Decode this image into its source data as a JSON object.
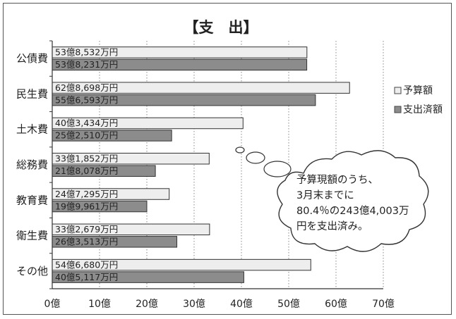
{
  "chart_data": {
    "type": "bar",
    "orientation": "horizontal",
    "title": "【支　出】",
    "categories": [
      "公債費",
      "民生費",
      "土木費",
      "総務費",
      "教育費",
      "衛生費",
      "その他"
    ],
    "series": [
      {
        "name": "予算額",
        "color": "#eeeeee",
        "values": [
          53.8532,
          62.8698,
          40.3434,
          33.1852,
          24.7295,
          33.2679,
          54.668
        ],
        "labels": [
          "53億8,532万円",
          "62億8,698万円",
          "40億3,434万円",
          "33億1,852万円",
          "24億7,295万円",
          "33億2,679万円",
          "54億6,680万円"
        ]
      },
      {
        "name": "支出済額",
        "color": "#8c8c8c",
        "values": [
          53.8231,
          55.6593,
          25.251,
          21.8078,
          19.9961,
          26.3513,
          40.5117
        ],
        "labels": [
          "53億8,231万円",
          "55億6,593万円",
          "25億2,510万円",
          "21億8,078万円",
          "19億9,961万円",
          "26億3,513万円",
          "40億5,117万円"
        ]
      }
    ],
    "xlim": [
      0,
      70
    ],
    "x_ticks": [
      "0億",
      "10億",
      "20億",
      "30億",
      "40億",
      "50億",
      "60億",
      "70億"
    ],
    "grid": true,
    "legend_position": "right",
    "annotation": {
      "lines": [
        "予算現額のうち、",
        "3月末までに",
        "80.4％の243億4,003万",
        "円を支出済み。"
      ]
    }
  }
}
